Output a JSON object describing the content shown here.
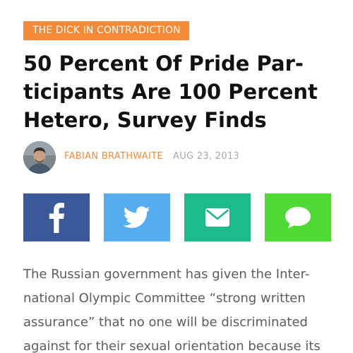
{
  "category": "THE DICK IN CONTRADICTION",
  "headline": {
    "lines": [
      "50 Percent Of Pride Par-",
      "ticipants Are 100 Percent",
      "Hetero, Survey Finds"
    ]
  },
  "byline": {
    "author": "FABIAN BRATHWAITE",
    "date": "AUG 23, 2013"
  },
  "share": {
    "buttons": [
      {
        "icon": "facebook-icon",
        "color": "#3b5998"
      },
      {
        "icon": "twitter-icon",
        "color": "#55acee"
      },
      {
        "icon": "email-icon",
        "color": "#1ebb8a"
      },
      {
        "icon": "sms-icon",
        "color": "#4ed934"
      }
    ]
  },
  "article": {
    "lines": [
      "The Russian government has given the Inter-",
      "national Olympic Committee “strong written",
      "assurance”  that no one will be discriminated",
      "against for their sexual orientation because its"
    ]
  },
  "colors": {
    "accent": "#f48a38",
    "headline": "#111111",
    "body": "#5d5d5d",
    "date": "#a8a8a8"
  }
}
